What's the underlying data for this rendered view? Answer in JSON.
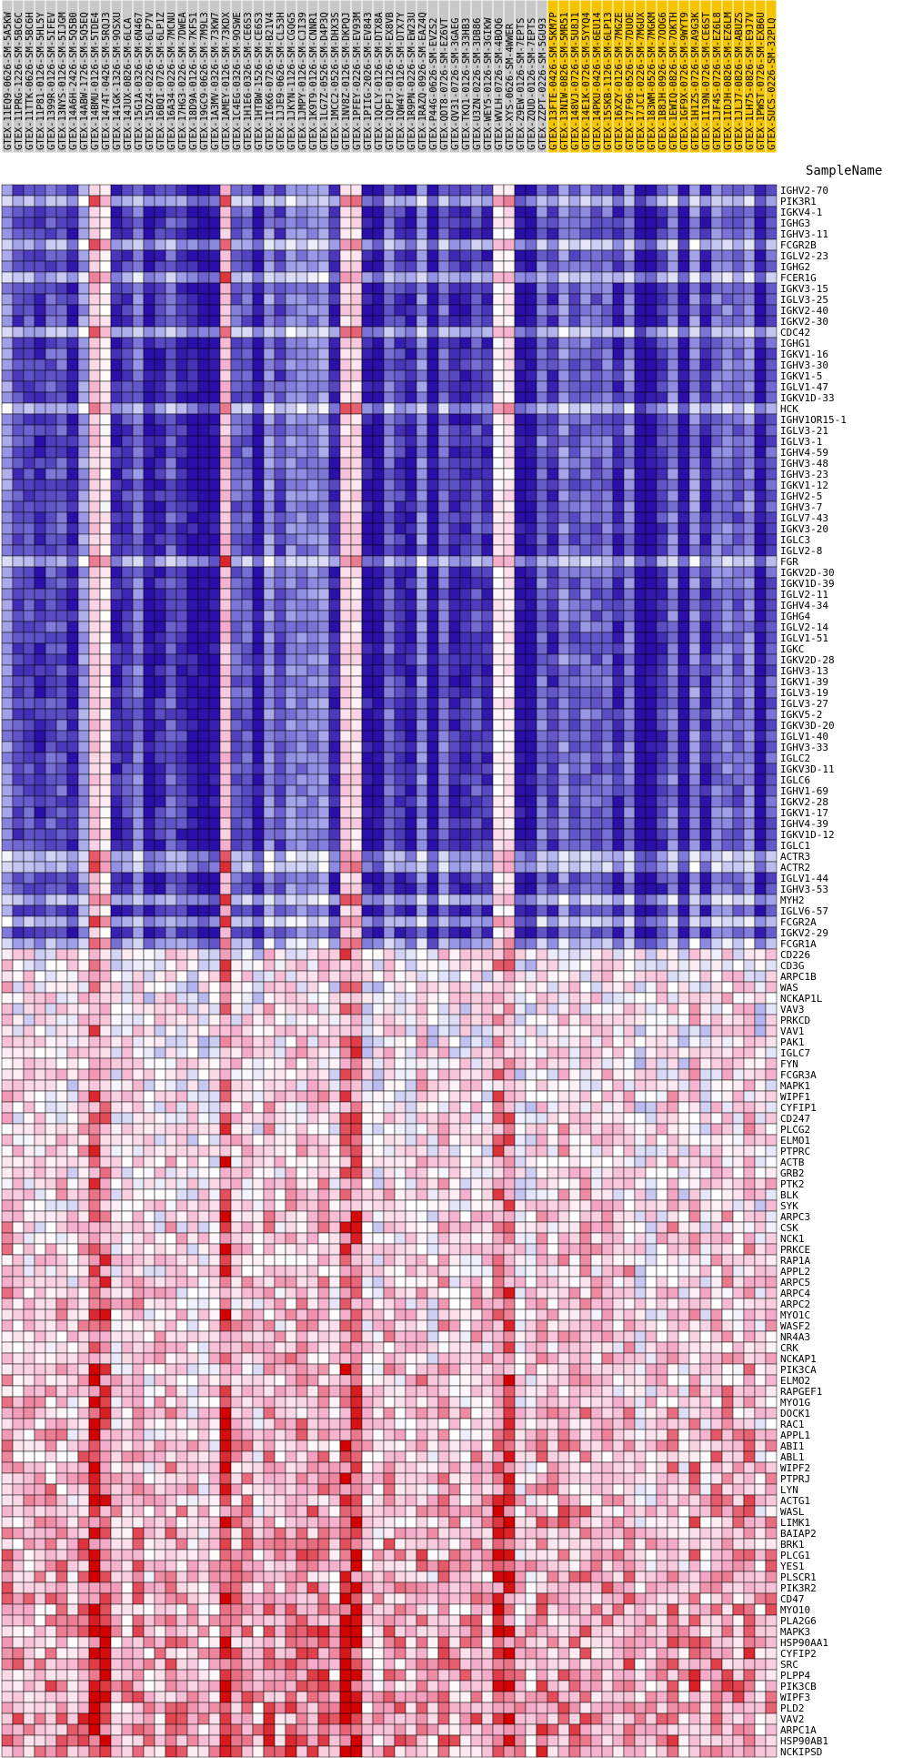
{
  "chart_data": {
    "type": "heatmap",
    "axis_title": "SampleName",
    "colors": {
      "low": "#2a0fa8",
      "mid_low": "#9a9ae8",
      "mid": "#ffffff",
      "mid_high": "#f4aac8",
      "high": "#d40000",
      "header_group_a": "#c8c8c8",
      "header_group_b": "#f5c400"
    },
    "columns": [
      "GTEX-11EQ9-0626-SM-5A5KW",
      "GTEX-11PRG-1226-SM-5BC6C",
      "GTEX-11TTK-0626-SM-5BC6H",
      "GTEX-11P81-0126-SM-5HL5Y",
      "GTEX-1399R-0126-SM-5IFEV",
      "GTEX-13NYS-0126-SM-5IJGM",
      "GTEX-14A6H-2426-SM-5Q5B0",
      "GTEX-14ABW-1726-SM-5Q5EQ",
      "GTEX-14BMU-0126-SM-5TDE4",
      "GTEX-1474T-0426-SM-5RQJ3",
      "GTEX-141GK-1326-SM-9OSXU",
      "GTEX-14JUX-0826-SM-6LCA",
      "GTEX-15G1A-0326-SM-6N467",
      "GTEX-15DZ4-0226-SM-6LP7V",
      "GTEX-16BQI-0726-SM-6LP1Z",
      "GTEX-16A34-0226-SM-7MCNU",
      "GTEX-17HG3-0226-SM-7DWEA",
      "GTEX-18D9A-0126-SM-7KFS1",
      "GTEX-19GC9-0626-SM-7M9L3",
      "GTEX-1A3MV-0326-SM-73KW7",
      "GTEX-1AMEY-0126-SM-73KDX",
      "GTEX-1C4EG-0326-SM-9OSWE",
      "GTEX-1H1E6-0326-SM-CE6S3",
      "GTEX-1HTBW-1526-SM-CE6S3",
      "GTEX-1I6K6-0726-SM-B21V4",
      "GTEX-1JJE9-0626-SM-CL53H",
      "GTEX-1JKYN-1126-SM-CGQG5",
      "GTEX-1JMPY-0126-SM-CJI39",
      "GTEX-1K9T9-0126-SM-CNNR1",
      "GTEX-1LG7Z-0526-SM-D4P3Q",
      "GTEX-1MCC2-0526-SM-DHX3S",
      "GTEX-1NV8Z-0126-SM-DKPQJ",
      "GTEX-1PFEY-0226-SM-EV93M",
      "GTEX-1PIIG-2026-SM-EV843",
      "GTEX-1QCLY-0126-SM-DTX8A",
      "GTEX-1QPFJ-0126-SM-EX8VB",
      "GTEX-1QW4Y-0126-SM-DTX7Y",
      "GTEX-1R9PN-0226-SM-EW23U",
      "GTEX-1RAZQ-0926-SM-EAZ4Q",
      "GTEX-P44G-0626-SM-EVZS2",
      "GTEX-QDT8-0726-SM-EZ6VT",
      "GTEX-QV31-0726-SM-3GAEG",
      "GTEX-TKQ1-0126-SM-33HB3",
      "GTEX-U3ZN-0226-SM-3DB86",
      "GTEX-WEY5-0126-SM-3GIKW",
      "GTEX-WVLH-0726-SM-4BOQ6",
      "GTEX-XYS-0626-SM-4WWER",
      "GTEX-Z9EW-0126-SM-7EPTS",
      "GTEX-ZQUD-0126-SM-7EPTS",
      "GTEX-ZZPT-0226-SM-5GU93",
      "GTEX-13FTE-0426-SM-5KM7P",
      "GTEX-13NIW-0826-SM-5MR51",
      "GTEX-148VJ-0726-SM-5U8J1",
      "GTEX-14E1K-0726-SM-5YYQ4",
      "GTEX-14PKU-0426-SM-6EU14",
      "GTEX-15SKB-1126-SM-6LP13",
      "GTEX-16XZY-0126-SM-7MGZE",
      "GTEX-17F96-0526-SM-7DUOE",
      "GTEX-17JCI-0226-SM-7MGUX",
      "GTEX-183WM-0526-SM-7MGKM",
      "GTEX-1B8JH-0926-SM-7OOG6",
      "GTEX-1EWIQ-0826-SM-7OKTH",
      "GTEX-1GF9X-0726-SM-9WYT9",
      "GTEX-1H1ZS-0726-SM-A9G3K",
      "GTEX-1I19N-0726-SM-CE6ST",
      "GTEX-1JF4S-0726-SM-EZ6L8",
      "GTEX-1IDJH-0826-SM-EZ6LM",
      "GTEX-1JLJ7-0826-SM-ABUZS",
      "GTEX-1LH75-0826-SM-E9J7V",
      "GTEX-1PWST-0726-SM-EXB6U",
      "GTEX-SUCS-0226-SM-32PLQ"
    ],
    "highlighted_columns_from": 50,
    "rows": [
      "IGHV2-70",
      "PIK3R1",
      "IGKV4-1",
      "IGHG3",
      "IGHV3-11",
      "FCGR2B",
      "IGLV2-23",
      "IGHG2",
      "FCER1G",
      "IGKV3-15",
      "IGLV3-25",
      "IGKV2-40",
      "IGKV2-30",
      "CDC42",
      "IGHG1",
      "IGKV1-16",
      "IGHV3-30",
      "IGKV1-5",
      "IGLV1-47",
      "IGKV1D-33",
      "HCK",
      "IGHV1OR15-1",
      "IGLV3-21",
      "IGLV3-1",
      "IGHV4-59",
      "IGHV3-48",
      "IGHV3-23",
      "IGKV1-12",
      "IGHV2-5",
      "IGHV3-7",
      "IGLV7-43",
      "IGKV3-20",
      "IGLC3",
      "IGLV2-8",
      "FGR",
      "IGKV2D-30",
      "IGKV1D-39",
      "IGLV2-11",
      "IGHV4-34",
      "IGHG4",
      "IGLV2-14",
      "IGLV1-51",
      "IGKC",
      "IGKV2D-28",
      "IGHV3-13",
      "IGKV1-39",
      "IGLV3-19",
      "IGLV3-27",
      "IGKV5-2",
      "IGKV3D-20",
      "IGLV1-40",
      "IGHV3-33",
      "IGLC2",
      "IGKV3D-11",
      "IGLC6",
      "IGHV1-69",
      "IGKV2-28",
      "IGKV1-17",
      "IGHV4-39",
      "IGKV1D-12",
      "IGLC1",
      "ACTR3",
      "ACTR2",
      "IGLV1-44",
      "IGHV3-53",
      "MYH2",
      "IGLV6-57",
      "FCGR2A",
      "IGKV2-29",
      "FCGR1A",
      "CD226",
      "CD3G",
      "ARPC1B",
      "WAS",
      "NCKAP1L",
      "VAV3",
      "PRKCD",
      "VAV1",
      "PAK1",
      "IGLC7",
      "FYN",
      "FCGR3A",
      "MAPK1",
      "WIPF1",
      "CYFIP1",
      "CD247",
      "PLCG2",
      "ELMO1",
      "PTPRC",
      "ACTB",
      "GRB2",
      "PTK2",
      "BLK",
      "SYK",
      "ARPC3",
      "CSK",
      "NCK1",
      "PRKCE",
      "RAP1A",
      "APPL2",
      "ARPC5",
      "ARPC4",
      "ARPC2",
      "MYO1C",
      "WASF2",
      "NR4A3",
      "CRK",
      "NCKAP1",
      "PIK3CA",
      "ELMO2",
      "RAPGEF1",
      "MYO1G",
      "DOCK1",
      "RAC1",
      "APPL1",
      "ABI1",
      "ABL1",
      "WIPF2",
      "PTPRJ",
      "LYN",
      "ACTG1",
      "WASL",
      "LIMK1",
      "BAIAP2",
      "BRK1",
      "PLCG1",
      "YES1",
      "PLSCR1",
      "PIK3R2",
      "CD47",
      "MYO10",
      "PLA2G6",
      "MAPK3",
      "HSP90AA1",
      "CYFIP2",
      "SRC",
      "PLPP4",
      "PIK3CB",
      "WIPF3",
      "PLD2",
      "VAV2",
      "ARPC1A",
      "HSP90AB1",
      "NCKIPSD"
    ],
    "value_range": [
      -3,
      3
    ],
    "legend": "none"
  }
}
